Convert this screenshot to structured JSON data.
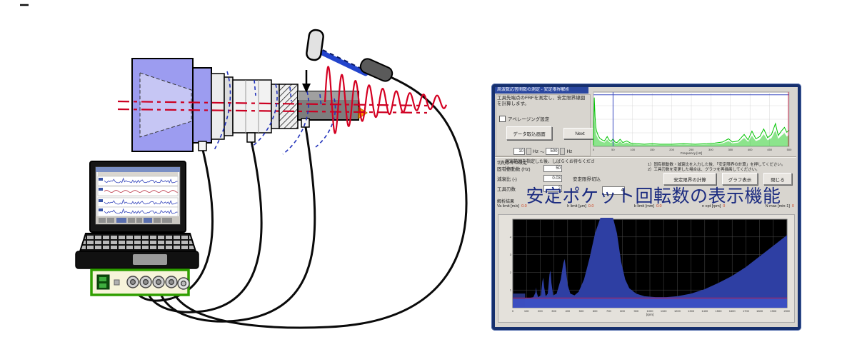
{
  "colors": {
    "window_border": "#16306e",
    "window_bg": "#d8d5cf",
    "caption_text": "#1b2b80",
    "spindle_blue": "#9c9cf0",
    "signal_red": "#d40022",
    "frf_green": "#00c400",
    "lobe_fill": "#2e3fa3",
    "lobe_band": "#3c50c4",
    "lobe_bg": "#000000",
    "daq_green": "#2f9e00"
  },
  "app": {
    "title": "周波数応答関数の測定 - 安定限界解析",
    "instruction": "工具先端点のFRFを測定し、安定限界線図を計算します。",
    "averaging_checkbox": "アベレージング設定",
    "load_button": "データ取込画面",
    "next_button": "Next",
    "range": {
      "from": "10",
      "to": "500",
      "unit": "Hz",
      "separator": "～"
    },
    "wait_note": "測定範囲を指定した後、しばらくお待ちください。",
    "form": {
      "section_title": "切削条件の設定",
      "rows": [
        {
          "label": "固有振動数 (Hz)",
          "value": "50"
        },
        {
          "label": "減衰比 (-)",
          "value": "0.03",
          "extra": "安定限界切込"
        },
        {
          "label": "工具刃数",
          "value": "2"
        }
      ],
      "extra_value": "4"
    },
    "notes": [
      "1）固有振動数・減衰比を入力した後、「安定限界の計算」を押してください。",
      "2）工具刃数を変更した場合は、グラフを再描画してください。"
    ],
    "action_buttons": [
      {
        "label": "安定限界の計算"
      },
      {
        "label": "グラフ表示"
      },
      {
        "label": "閉じる"
      }
    ],
    "results": {
      "title": "解析結果",
      "items": [
        {
          "label": "Va limit [m/s]",
          "value": "0.0"
        },
        {
          "label": "h limit [μm]",
          "value": "0.0"
        },
        {
          "label": "b limit [mm]",
          "value": "0.0"
        },
        {
          "label": "n opt [rpm]",
          "value": "0"
        },
        {
          "label": "N max [min-1]",
          "value": "0"
        }
      ]
    },
    "overlay_caption": "安定ポケット回転数の表示機能"
  },
  "chart_data": [
    {
      "type": "line",
      "title": "FRF magnitude spectrum",
      "xlabel": "Frequency [Hz]",
      "ylabel": "",
      "xlim": [
        0,
        500
      ],
      "xtick_step": 50,
      "ylim": [
        0,
        1
      ],
      "grid": true,
      "line_color": "#00c400",
      "points": [
        [
          0,
          0.02
        ],
        [
          2,
          0.9
        ],
        [
          4,
          0.55
        ],
        [
          6,
          0.35
        ],
        [
          8,
          0.28
        ],
        [
          12,
          0.2
        ],
        [
          16,
          0.15
        ],
        [
          22,
          0.12
        ],
        [
          28,
          0.1
        ],
        [
          35,
          0.18
        ],
        [
          40,
          0.12
        ],
        [
          45,
          0.09
        ],
        [
          50,
          0.14
        ],
        [
          55,
          0.08
        ],
        [
          60,
          0.07
        ],
        [
          68,
          0.13
        ],
        [
          75,
          0.07
        ],
        [
          85,
          0.1
        ],
        [
          95,
          0.06
        ],
        [
          110,
          0.05
        ],
        [
          130,
          0.04
        ],
        [
          150,
          0.05
        ],
        [
          170,
          0.04
        ],
        [
          200,
          0.04
        ],
        [
          230,
          0.05
        ],
        [
          260,
          0.04
        ],
        [
          290,
          0.05
        ],
        [
          310,
          0.06
        ],
        [
          330,
          0.08
        ],
        [
          345,
          0.14
        ],
        [
          355,
          0.08
        ],
        [
          370,
          0.1
        ],
        [
          385,
          0.22
        ],
        [
          395,
          0.12
        ],
        [
          405,
          0.28
        ],
        [
          415,
          0.14
        ],
        [
          425,
          0.18
        ],
        [
          435,
          0.32
        ],
        [
          445,
          0.16
        ],
        [
          455,
          0.22
        ],
        [
          465,
          0.42
        ],
        [
          472,
          0.2
        ],
        [
          480,
          0.28
        ],
        [
          488,
          0.35
        ],
        [
          494,
          0.26
        ],
        [
          500,
          0.3
        ]
      ],
      "vlines": [
        {
          "x": 50,
          "color": "#3b4bc0"
        },
        {
          "x": 498,
          "color": "#cc3355"
        }
      ],
      "hlines": [
        {
          "y": 0.95,
          "color": "#3b4bc0"
        }
      ]
    },
    {
      "type": "area",
      "title": "Stability lobe diagram",
      "xlabel": "[rpm]",
      "ylabel": "",
      "xlim": [
        0,
        2000
      ],
      "xtick_step": 100,
      "ylim": [
        0,
        5
      ],
      "yticks": [
        1,
        2,
        3,
        4,
        5
      ],
      "grid": true,
      "bg": "#000000",
      "fill_color": "#2e3fa3",
      "band_top": 0.5,
      "band_color": "#3c50c4",
      "left_block": {
        "x_end": 90,
        "height": 0.8,
        "color": "#27337f"
      },
      "hlines": [
        {
          "y": 0.55,
          "color": "#c2255c"
        }
      ],
      "points": [
        [
          0,
          0.75
        ],
        [
          60,
          0.75
        ],
        [
          80,
          0.55
        ],
        [
          120,
          0.55
        ],
        [
          150,
          0.6
        ],
        [
          165,
          0.85
        ],
        [
          170,
          1.15
        ],
        [
          175,
          0.85
        ],
        [
          185,
          0.6
        ],
        [
          205,
          0.7
        ],
        [
          215,
          1.45
        ],
        [
          222,
          1.7
        ],
        [
          228,
          1.2
        ],
        [
          240,
          0.65
        ],
        [
          255,
          0.8
        ],
        [
          268,
          1.9
        ],
        [
          275,
          2.1
        ],
        [
          282,
          1.4
        ],
        [
          295,
          0.7
        ],
        [
          320,
          0.8
        ],
        [
          350,
          1.6
        ],
        [
          368,
          2.5
        ],
        [
          378,
          2.75
        ],
        [
          388,
          2.2
        ],
        [
          400,
          1.3
        ],
        [
          420,
          0.8
        ],
        [
          450,
          0.7
        ],
        [
          480,
          0.9
        ],
        [
          520,
          1.6
        ],
        [
          560,
          2.8
        ],
        [
          600,
          4.2
        ],
        [
          640,
          5.3
        ],
        [
          700,
          5.6
        ],
        [
          730,
          5.4
        ],
        [
          760,
          4.2
        ],
        [
          790,
          2.6
        ],
        [
          820,
          1.6
        ],
        [
          850,
          1.1
        ],
        [
          900,
          0.8
        ],
        [
          960,
          0.65
        ],
        [
          1040,
          0.6
        ],
        [
          1120,
          0.6
        ],
        [
          1200,
          0.65
        ],
        [
          1300,
          0.8
        ],
        [
          1400,
          1.05
        ],
        [
          1500,
          1.4
        ],
        [
          1600,
          1.8
        ],
        [
          1700,
          2.3
        ],
        [
          1800,
          2.9
        ],
        [
          1900,
          3.5
        ],
        [
          2000,
          4.1
        ]
      ]
    }
  ]
}
